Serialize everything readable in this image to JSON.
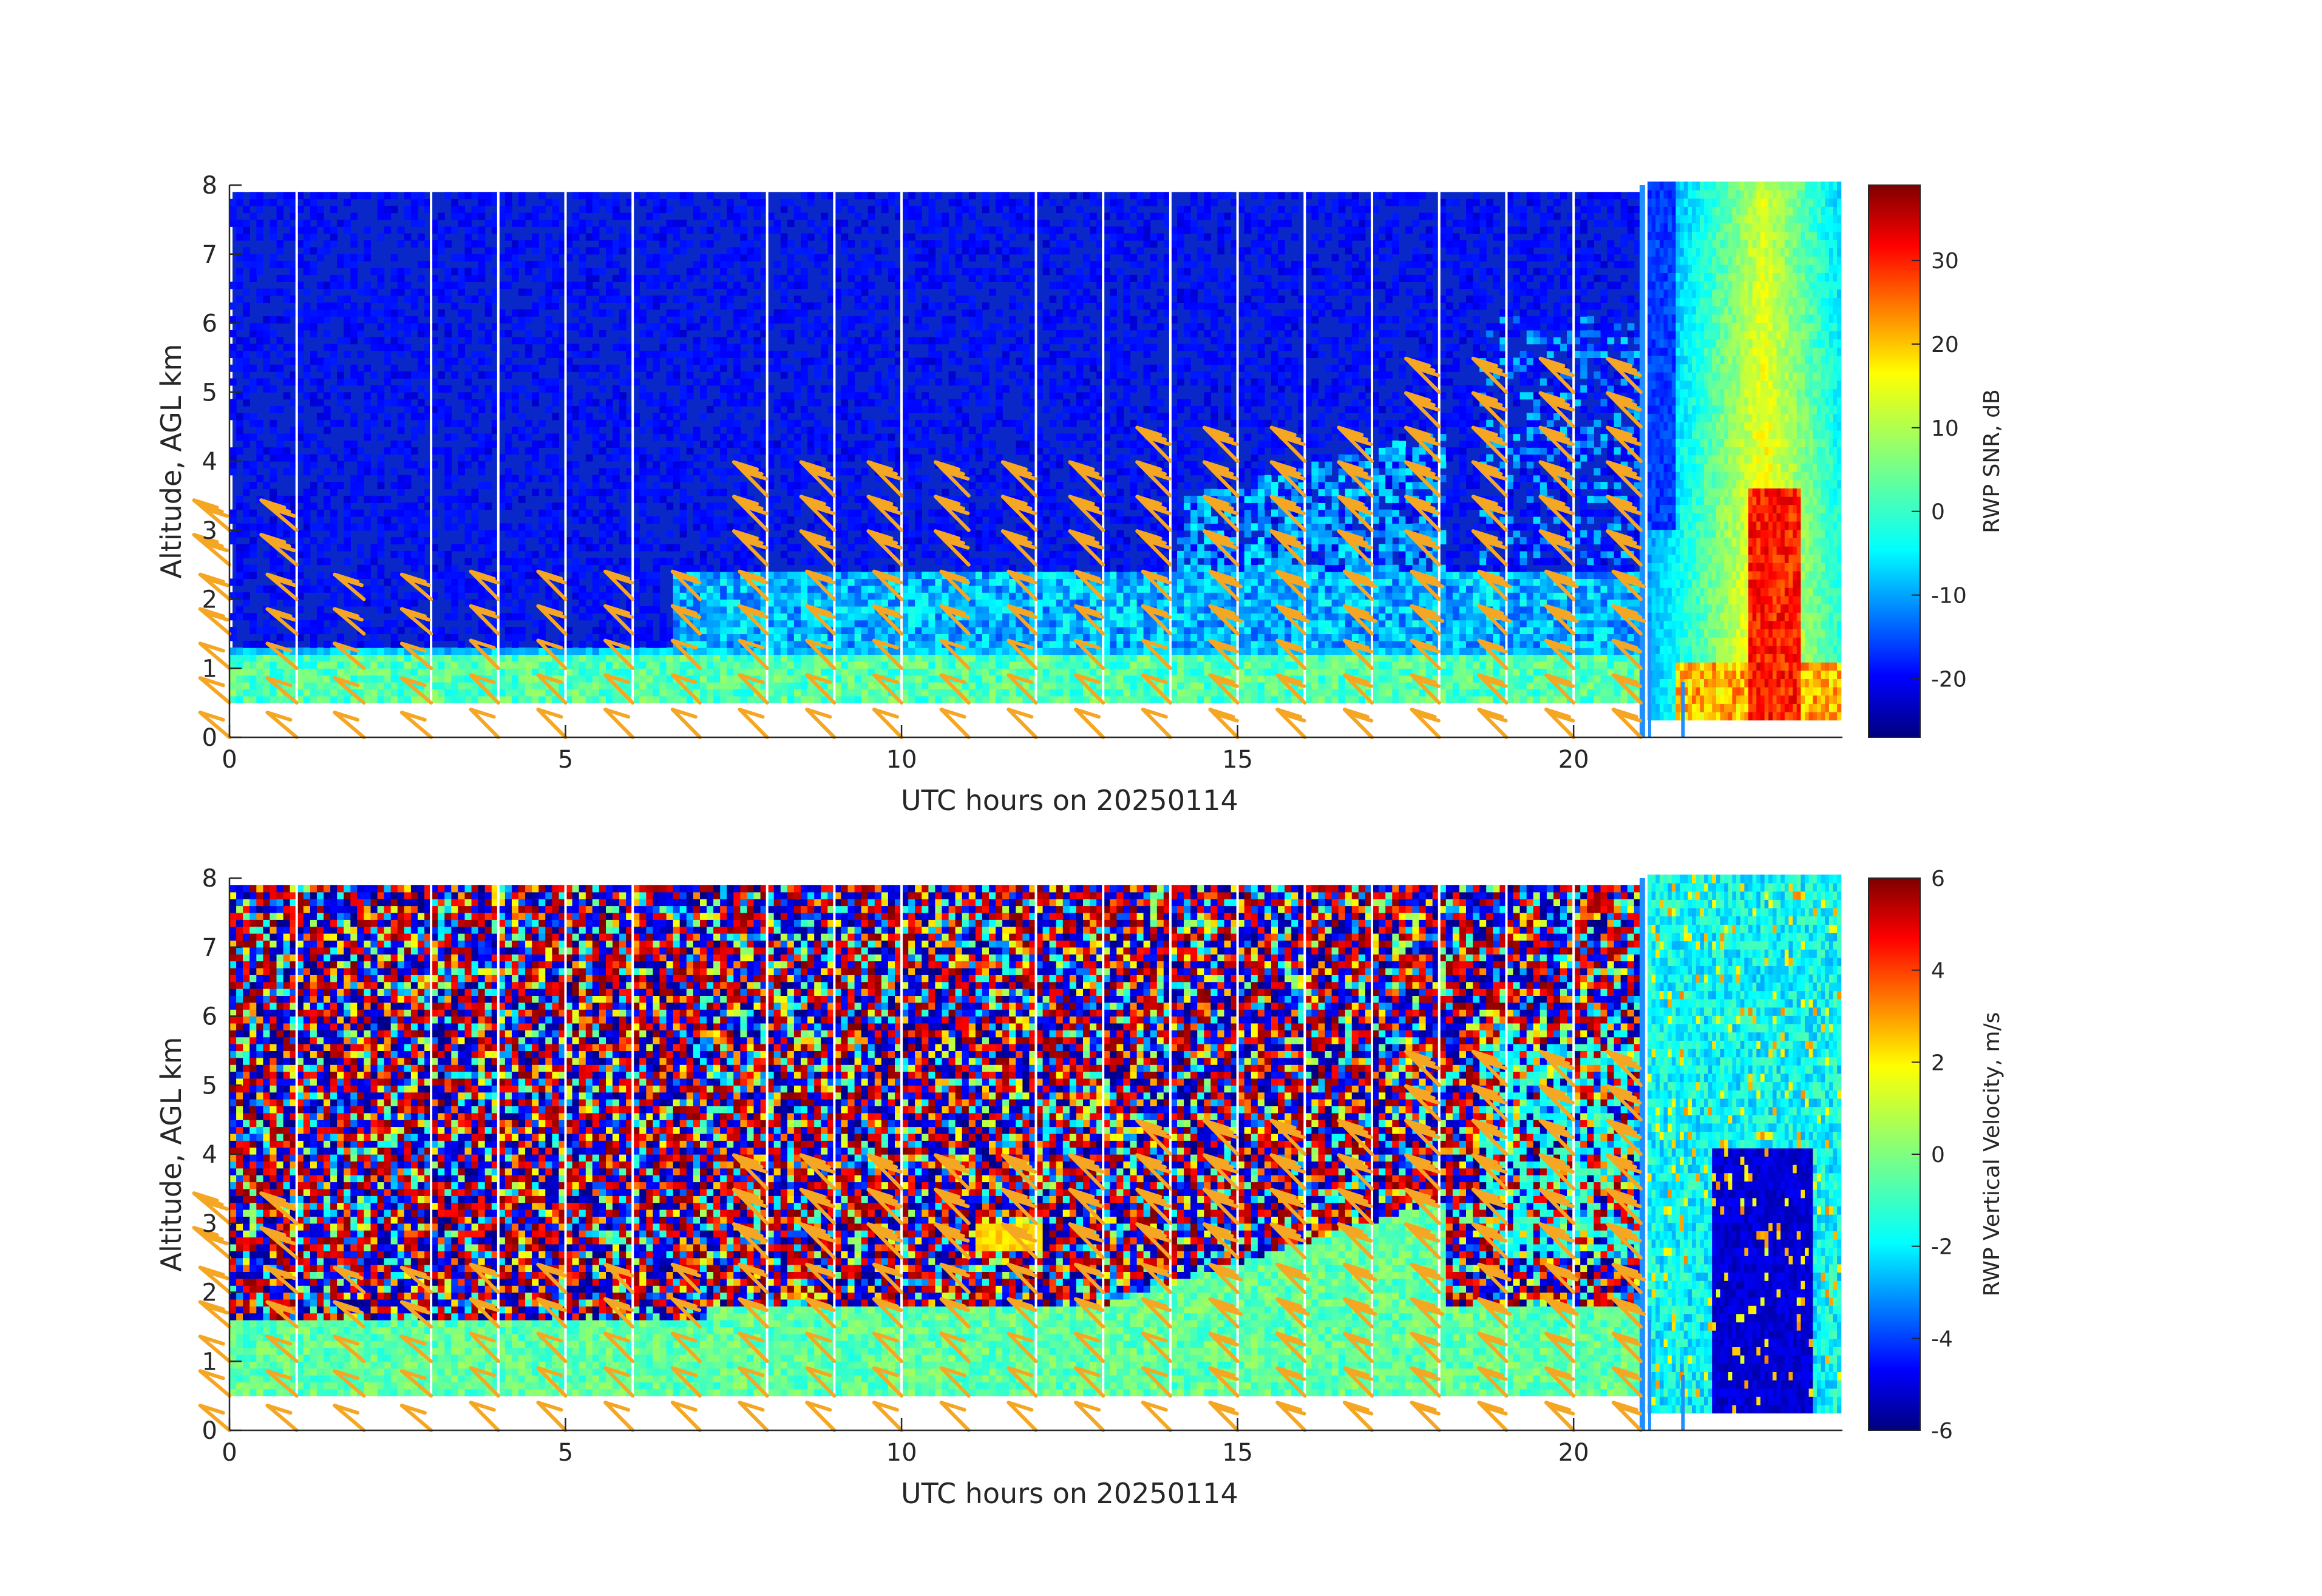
{
  "chart_data": [
    {
      "type": "heatmap",
      "panel": "top",
      "variable": "snr",
      "xlabel": "UTC hours on 20250114",
      "ylabel": "Altitude, AGL km",
      "xlim": [
        0,
        24
      ],
      "ylim": [
        0,
        8
      ],
      "xticks": [
        0,
        5,
        10,
        15,
        20
      ],
      "yticks": [
        0,
        1,
        2,
        3,
        4,
        5,
        6,
        7,
        8
      ],
      "colorbar": {
        "label": "RWP SNR, dB",
        "range": [
          -27,
          39
        ],
        "ticks": [
          -20,
          -10,
          0,
          10,
          20,
          30
        ],
        "colormap": "jet"
      },
      "data_gap_start_hour": 21,
      "data_gap_marker_color": "#1f8fff",
      "vertical_gap_lines_hours": [
        1,
        3,
        4,
        5,
        6,
        8,
        9,
        10,
        12,
        13,
        14,
        15,
        16,
        17,
        18,
        19,
        20
      ],
      "wind_barb_color": "#f5a623",
      "features": [
        {
          "name": "boundary-layer",
          "hours": [
            0,
            21
          ],
          "alt_km": [
            0.5,
            1.3
          ],
          "snr_db": 0
        },
        {
          "name": "elevated-layer",
          "hours": [
            7,
            21
          ],
          "alt_km": [
            1.4,
            2.4
          ],
          "snr_db": -5
        },
        {
          "name": "cloud-echo",
          "hours": [
            21,
            24
          ],
          "alt_km": [
            0.3,
            8
          ],
          "snr_db": 10
        },
        {
          "name": "precip-core",
          "hours": [
            22.6,
            23.3
          ],
          "alt_km": [
            0.3,
            3.6
          ],
          "snr_db": 30
        }
      ]
    },
    {
      "type": "heatmap",
      "panel": "bottom",
      "variable": "w",
      "xlabel": "UTC hours on 20250114",
      "ylabel": "Altitude, AGL km",
      "xlim": [
        0,
        24
      ],
      "ylim": [
        0,
        8
      ],
      "xticks": [
        0,
        5,
        10,
        15,
        20
      ],
      "yticks": [
        0,
        1,
        2,
        3,
        4,
        5,
        6,
        7,
        8
      ],
      "colorbar": {
        "label": "RWP Vertical Velocity, m/s",
        "range": [
          -6,
          6
        ],
        "ticks": [
          -6,
          -4,
          -2,
          0,
          2,
          4,
          6
        ],
        "colormap": "jet"
      },
      "data_gap_start_hour": 21,
      "data_gap_marker_color": "#1f8fff",
      "vertical_gap_lines_hours": [
        1,
        3,
        4,
        5,
        6,
        8,
        9,
        10,
        12,
        13,
        14,
        15,
        16,
        17,
        18,
        19,
        20
      ],
      "wind_barb_color": "#f5a623",
      "features": [
        {
          "name": "boundary-layer",
          "hours": [
            0,
            21
          ],
          "alt_km": [
            0.5,
            1.8
          ],
          "w_ms": -0.5
        },
        {
          "name": "noise-aloft",
          "hours": [
            0,
            21
          ],
          "alt_km": [
            1.8,
            8
          ],
          "w_ms": "random"
        },
        {
          "name": "precip-fall",
          "hours": [
            21,
            24
          ],
          "alt_km": [
            0.2,
            8
          ],
          "w_ms": -3
        }
      ]
    }
  ]
}
